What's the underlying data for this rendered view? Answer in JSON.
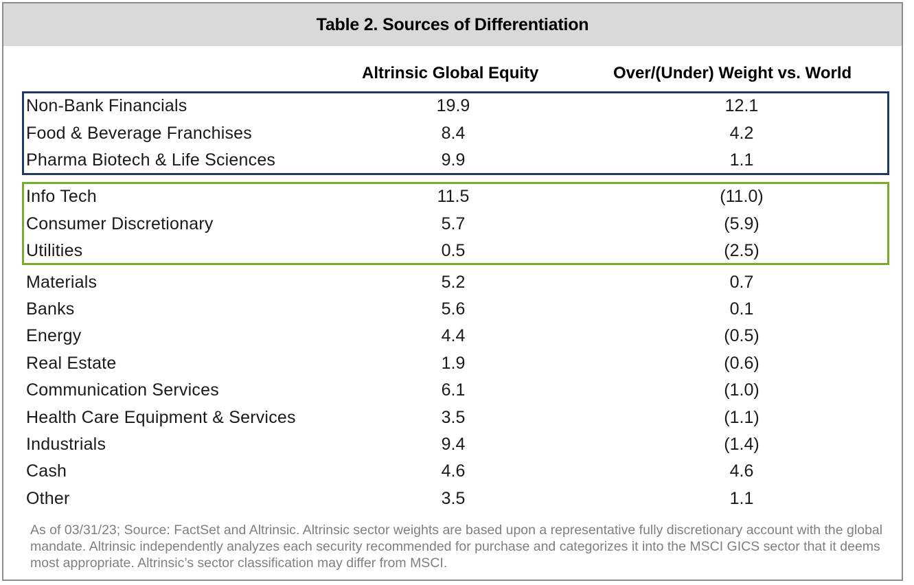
{
  "title": "Table 2. Sources of Differentiation",
  "columns": {
    "equity": "Altrinsic Global Equity",
    "weight": "Over/(Under) Weight vs. World"
  },
  "groups": {
    "highlight_blue": "#1f3864",
    "highlight_green": "#7aac2c"
  },
  "rows": [
    {
      "sector": "Non-Bank Financials",
      "equity": "19.9",
      "weight": "12.1"
    },
    {
      "sector": "Food & Beverage Franchises",
      "equity": "8.4",
      "weight": "4.2"
    },
    {
      "sector": "Pharma Biotech & Life Sciences",
      "equity": "9.9",
      "weight": "1.1"
    },
    {
      "sector": "Info Tech",
      "equity": "11.5",
      "weight": "(11.0)"
    },
    {
      "sector": "Consumer Discretionary",
      "equity": "5.7",
      "weight": "(5.9)"
    },
    {
      "sector": "Utilities",
      "equity": "0.5",
      "weight": "(2.5)"
    },
    {
      "sector": "Materials",
      "equity": "5.2",
      "weight": "0.7"
    },
    {
      "sector": "Banks",
      "equity": "5.6",
      "weight": "0.1"
    },
    {
      "sector": "Energy",
      "equity": "4.4",
      "weight": "(0.5)"
    },
    {
      "sector": "Real Estate",
      "equity": "1.9",
      "weight": "(0.6)"
    },
    {
      "sector": "Communication Services",
      "equity": "6.1",
      "weight": "(1.0)"
    },
    {
      "sector": "Health Care Equipment & Services",
      "equity": "3.5",
      "weight": "(1.1)"
    },
    {
      "sector": "Industrials",
      "equity": "9.4",
      "weight": "(1.4)"
    },
    {
      "sector": "Cash",
      "equity": "4.6",
      "weight": "4.6"
    },
    {
      "sector": "Other",
      "equity": "3.5",
      "weight": "1.1"
    }
  ],
  "footnote": "As of 03/31/23; Source: FactSet and Altrinsic.  Altrinsic sector weights are based upon a representative fully discretionary account with the global mandate. Altrinsic independently analyzes each security recommended for purchase and categorizes it into the MSCI GICS sector that it deems most appropriate. Altrinsic’s sector classification may differ from MSCI."
}
